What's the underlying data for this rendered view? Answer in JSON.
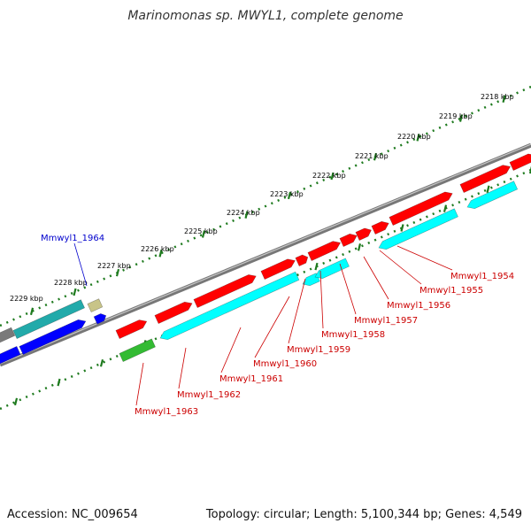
{
  "title": "Marinomonas sp. MWYL1, complete genome",
  "footer": {
    "accession": "Accession: NC_009654",
    "topology": "Topology: circular; Length: 5,100,344 bp; Genes: 4,549"
  },
  "colors": {
    "backbone": "#888888",
    "ruler_ticks": "#1e7a1e",
    "forward_cds": "#ff0000",
    "reverse_cds": "#00ffff",
    "other_cds": "#0000ff",
    "rna": "#33bb33",
    "misc": "#c8c488",
    "label_red": "#cc0000",
    "label_blue": "#0000cc"
  },
  "ruler_labels": [
    "2218 kbp",
    "2219 kbp",
    "2220 kbp",
    "2221 kbp",
    "2222 kbp",
    "2223 kbp",
    "2224 kbp",
    "2225 kbp",
    "2226 kbp",
    "2227 kbp",
    "2228 kbp",
    "2229 kbp"
  ],
  "gene_labels": [
    "Mmwyl1_1954",
    "Mmwyl1_1955",
    "Mmwyl1_1956",
    "Mmwyl1_1957",
    "Mmwyl1_1958",
    "Mmwyl1_1959",
    "Mmwyl1_1960",
    "Mmwyl1_1961",
    "Mmwyl1_1962",
    "Mmwyl1_1963",
    "Mmwyl1_1964"
  ]
}
